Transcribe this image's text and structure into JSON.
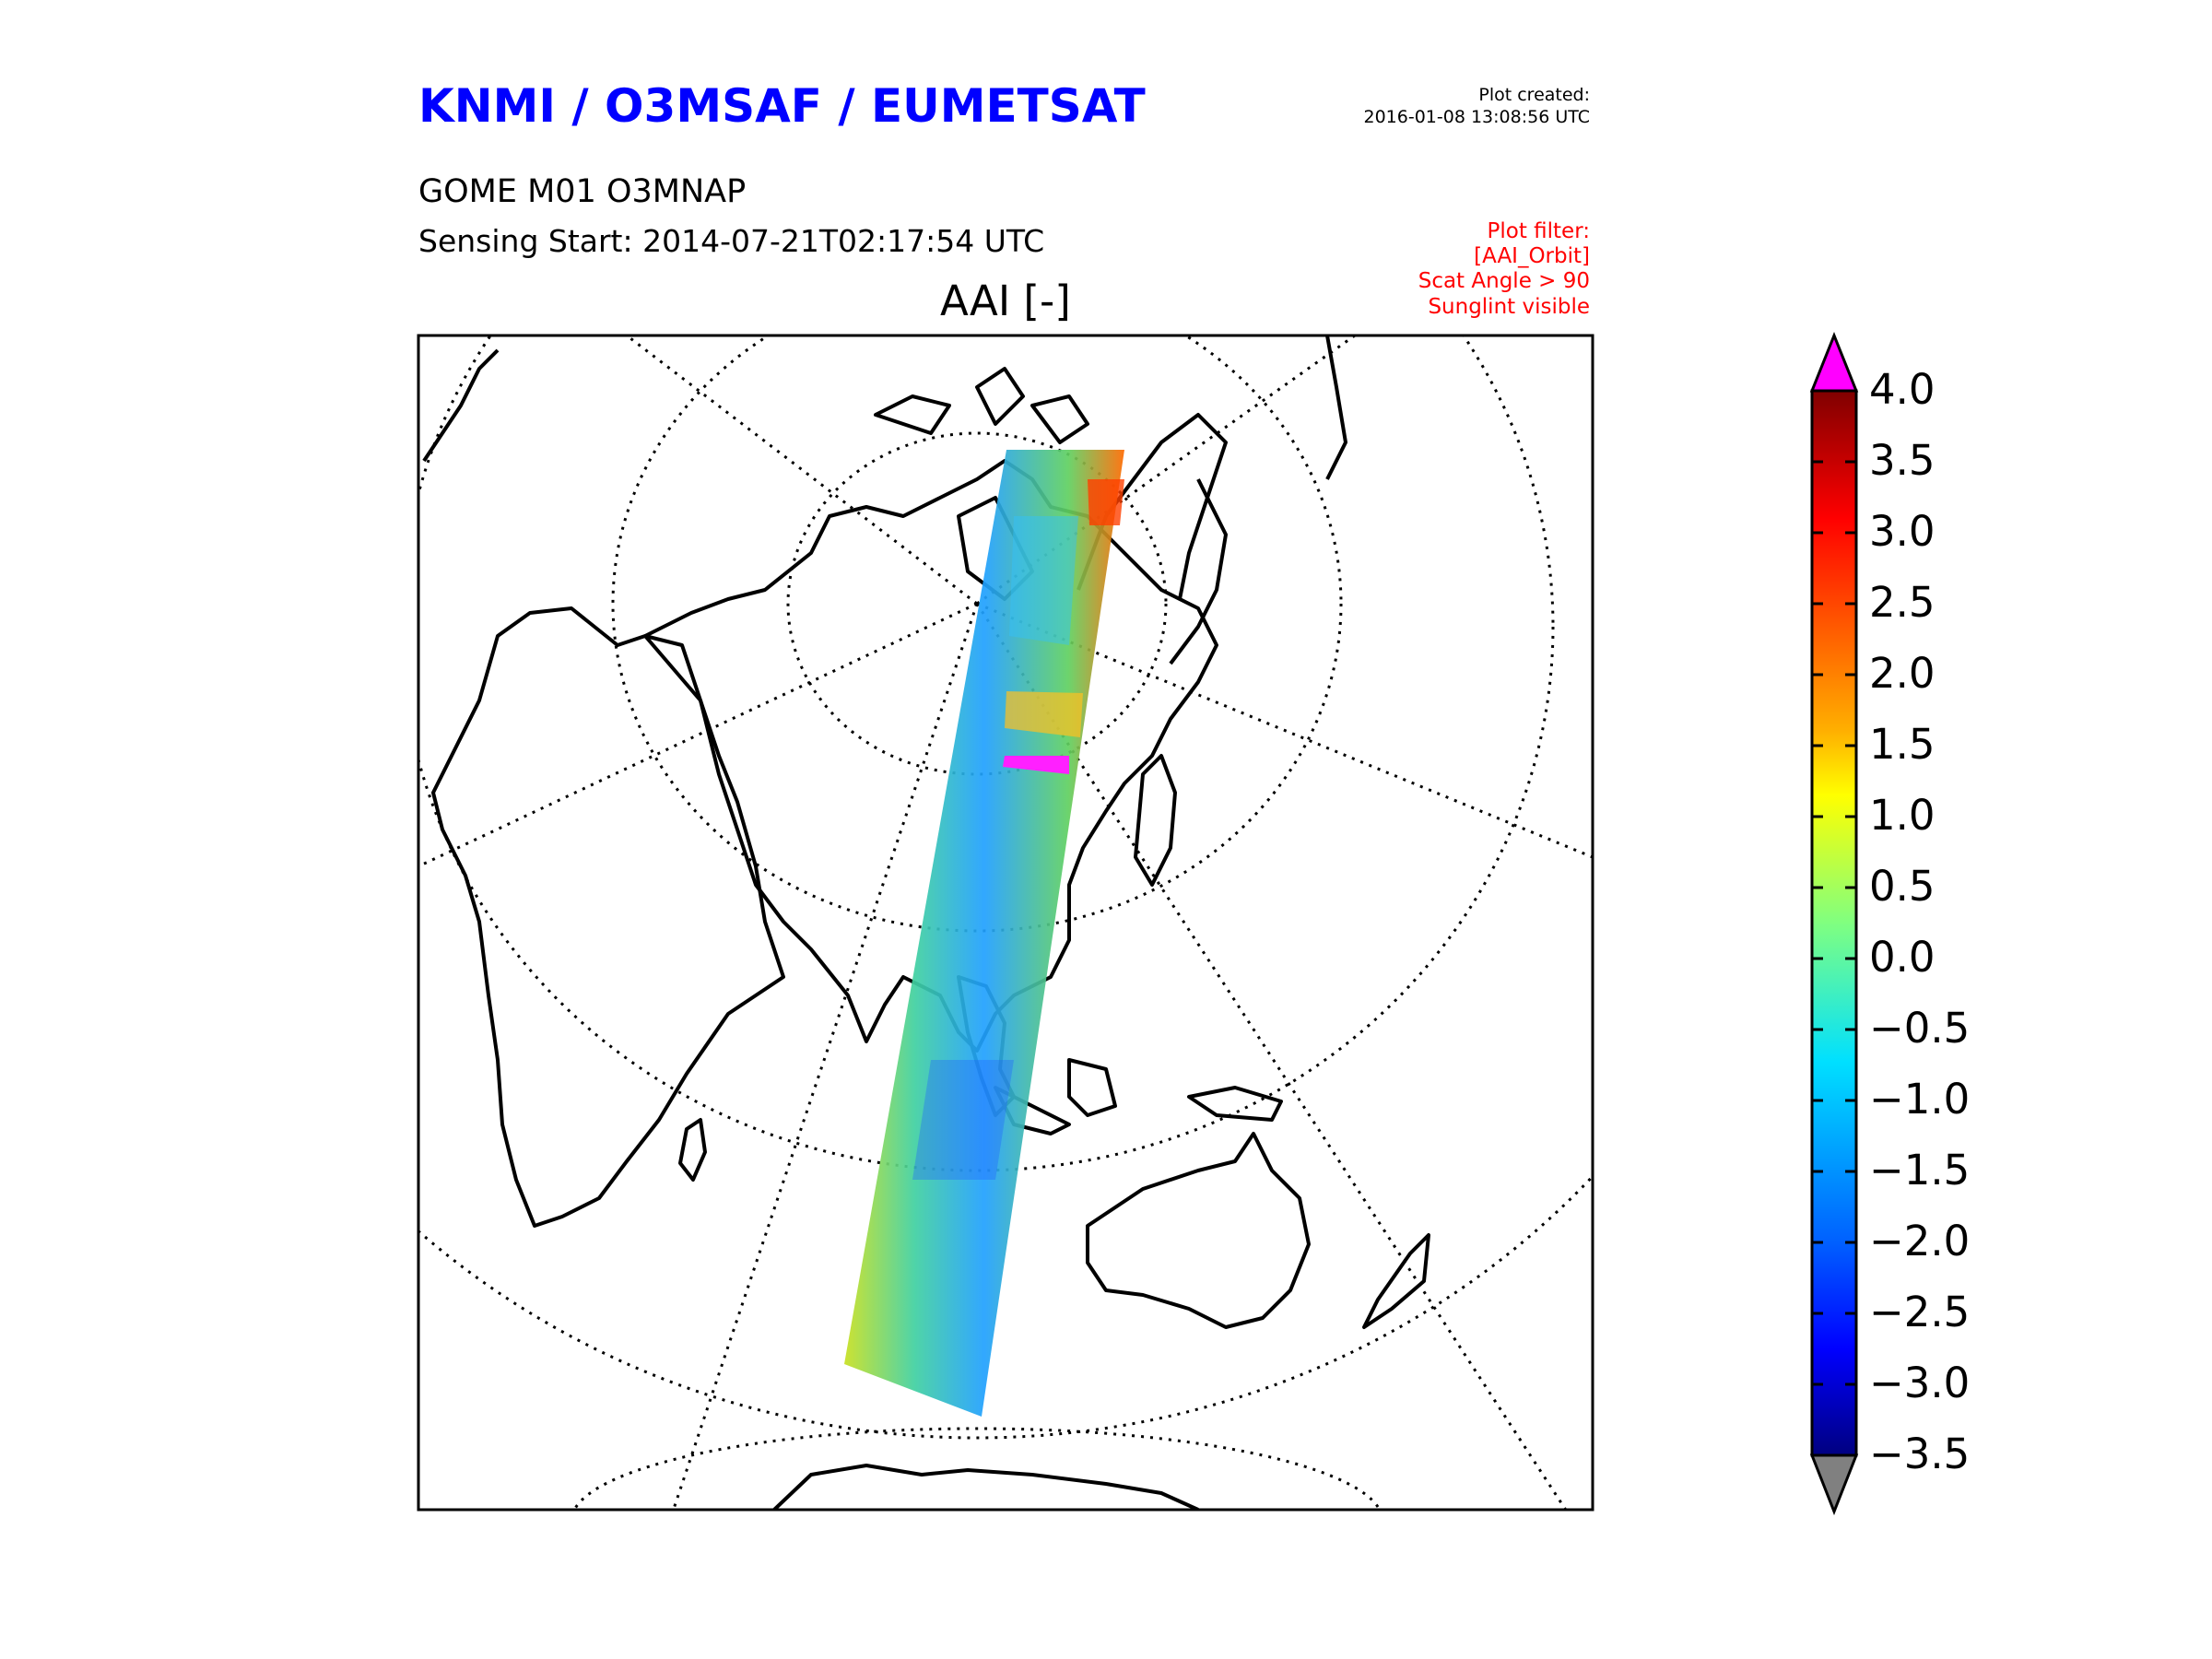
{
  "header": {
    "org": "KNMI / O3MSAF / EUMETSAT",
    "created_label": "Plot created:",
    "created_value": "2016-01-08 13:08:56 UTC",
    "product": "GOME M01 O3MNAP",
    "sensing_start": "Sensing Start: 2014-07-21T02:17:54 UTC",
    "plot_title": "AAI [-]"
  },
  "filter": {
    "lines": [
      "Plot filter:",
      "[AAI_Orbit]",
      "Scat Angle > 90",
      "Sunglint visible"
    ],
    "color": "#ff0000"
  },
  "map": {
    "projection": "polar azimuthal (north pole view)",
    "graticule": "dotted",
    "coastlines": "black",
    "swath": "GOME-2 orbit track over Asia / Indian Ocean"
  },
  "colorbar": {
    "ticks": [
      "4.0",
      "3.5",
      "3.0",
      "2.5",
      "2.0",
      "1.5",
      "1.0",
      "0.5",
      "0.0",
      "−0.5",
      "−1.0",
      "−1.5",
      "−2.0",
      "−2.5",
      "−3.0",
      "−3.5"
    ],
    "over_color": "#ff00ff",
    "under_color": "#808080",
    "colormap": "jet"
  },
  "colors": {
    "title_blue": "#0000ff",
    "filter_red": "#ff0000"
  }
}
